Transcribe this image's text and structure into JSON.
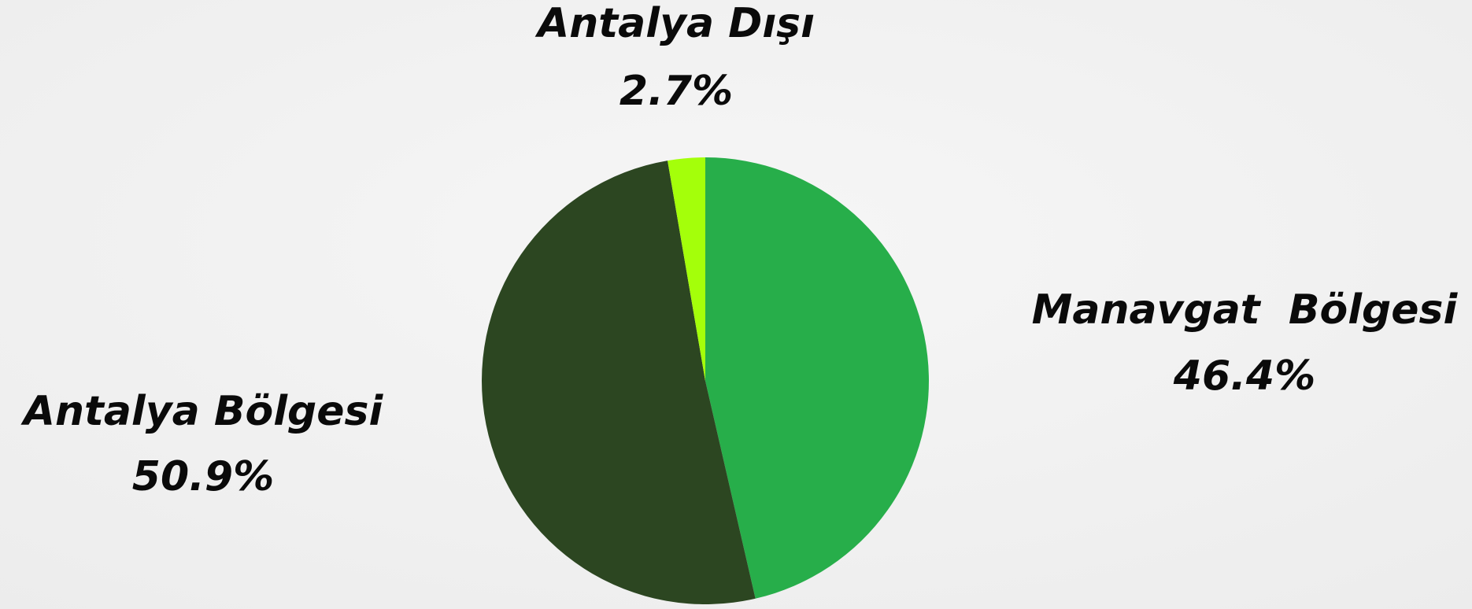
{
  "chart_data": {
    "type": "pie",
    "categories": [
      "Manavgat  Bölgesi",
      "Antalya Bölgesi",
      "Antalya Dışı"
    ],
    "values": [
      46.4,
      50.9,
      2.7
    ],
    "value_labels": [
      "46.4%",
      "50.9%",
      "2.7%"
    ],
    "colors": [
      "#27ae4a",
      "#2c4621",
      "#a4ff0a"
    ]
  }
}
